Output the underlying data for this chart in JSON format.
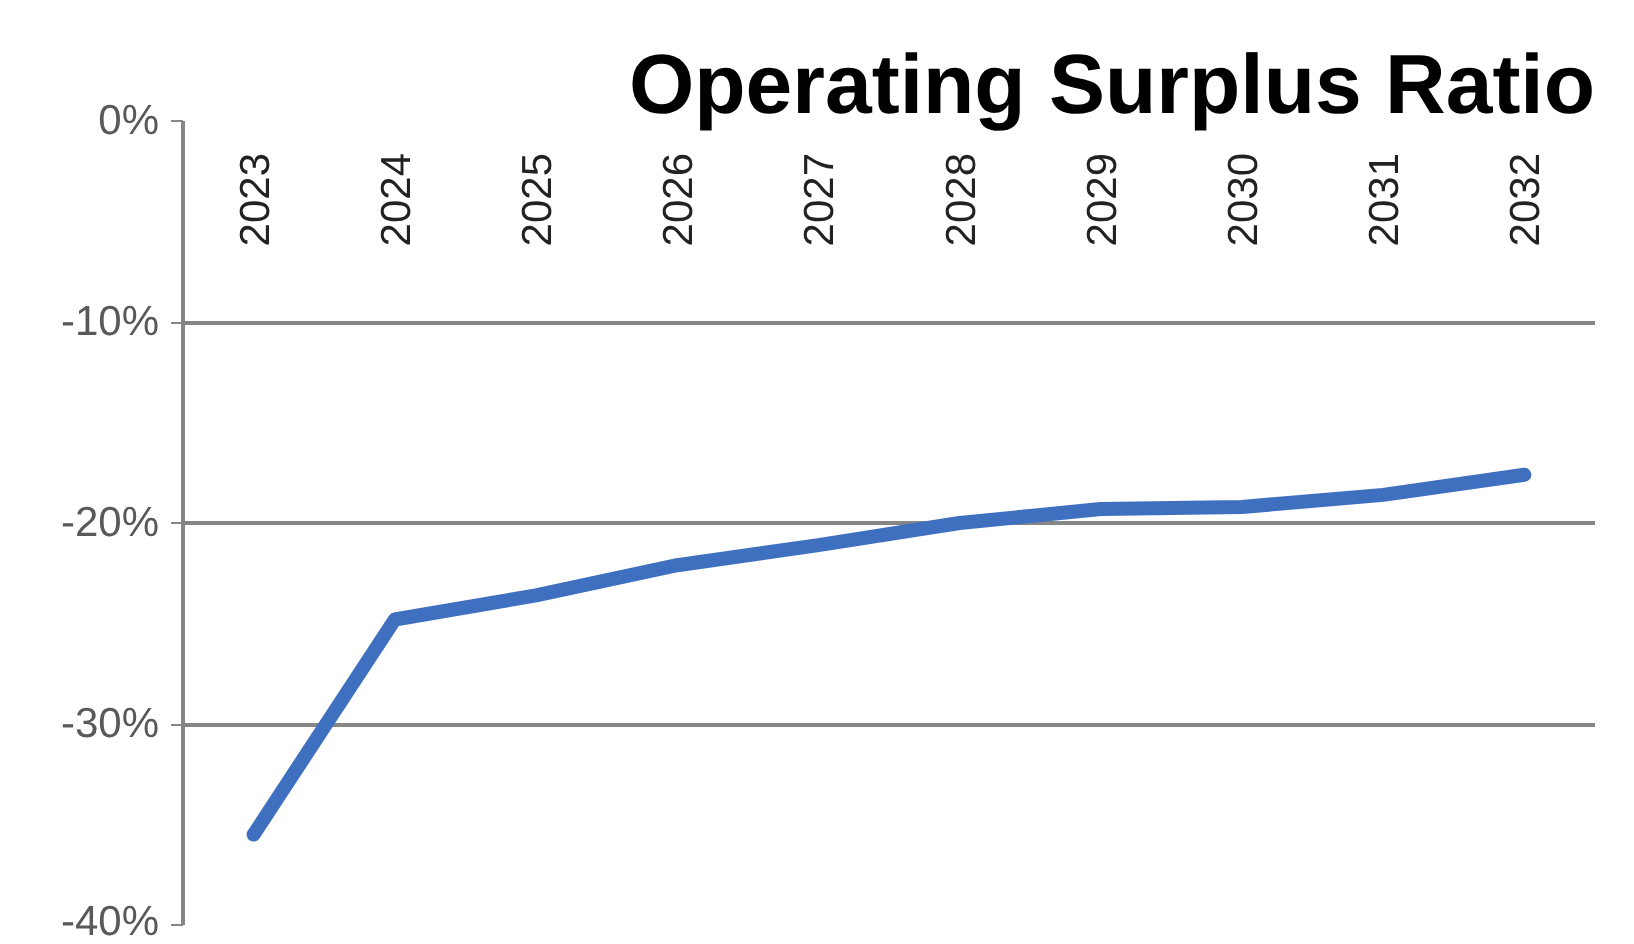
{
  "chart_data": {
    "type": "line",
    "title": "Operating Surplus Ratio",
    "categories": [
      "2023",
      "2024",
      "2025",
      "2026",
      "2027",
      "2028",
      "2029",
      "2030",
      "2031",
      "2032"
    ],
    "series": [
      {
        "color": "#3f6fbf",
        "values": [
          -35.5,
          -24.8,
          -23.6,
          -22.1,
          -21.1,
          -20.0,
          -19.3,
          -19.2,
          -18.6,
          -17.6
        ]
      }
    ],
    "ylim": [
      -40,
      0
    ],
    "yticks": [
      {
        "value": 0,
        "label": "0%"
      },
      {
        "value": -10,
        "label": "-10%"
      },
      {
        "value": -20,
        "label": "-20%"
      },
      {
        "value": -30,
        "label": "-30%"
      },
      {
        "value": -40,
        "label": "-40%"
      }
    ],
    "grid": "y",
    "marker": "none",
    "line_style": "solid"
  }
}
